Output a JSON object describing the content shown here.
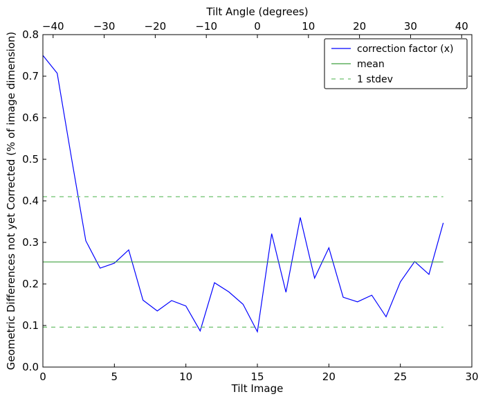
{
  "chart_data": {
    "type": "line",
    "title": "",
    "xlabel": "Tilt Image",
    "ylabel": "Geometric Differences not yet Corrected (% of image dimension)",
    "x2label": "Tilt Angle (degrees)",
    "xlim": [
      0,
      30
    ],
    "ylim": [
      0,
      0.8
    ],
    "x2lim": [
      -42,
      42
    ],
    "xticks": [
      0,
      5,
      10,
      15,
      20,
      25,
      30
    ],
    "xtick_labels": [
      "0",
      "5",
      "10",
      "15",
      "20",
      "25",
      "30"
    ],
    "yticks": [
      0,
      0.1,
      0.2,
      0.3,
      0.4,
      0.5,
      0.6,
      0.7,
      0.8
    ],
    "ytick_labels": [
      "0.0",
      "0.1",
      "0.2",
      "0.3",
      "0.4",
      "0.5",
      "0.6",
      "0.7",
      "0.8"
    ],
    "x2ticks": [
      -40,
      -30,
      -20,
      -10,
      0,
      10,
      20,
      30,
      40
    ],
    "x2tick_labels": [
      "−40",
      "−30",
      "−20",
      "−10",
      "0",
      "10",
      "20",
      "30",
      "40"
    ],
    "grid": false,
    "legend_position": "top-right",
    "series": [
      {
        "name": "correction factor (x)",
        "color": "#0000ff",
        "style": "solid",
        "x": [
          0,
          1,
          2,
          3,
          4,
          5,
          6,
          7,
          8,
          9,
          10,
          11,
          12,
          13,
          14,
          15,
          16,
          17,
          18,
          19,
          20,
          21,
          22,
          23,
          24,
          25,
          26,
          27,
          28
        ],
        "values": [
          0.75,
          0.707,
          0.503,
          0.304,
          0.238,
          0.25,
          0.282,
          0.161,
          0.135,
          0.16,
          0.147,
          0.087,
          0.203,
          0.181,
          0.151,
          0.085,
          0.321,
          0.18,
          0.36,
          0.214,
          0.287,
          0.168,
          0.157,
          0.173,
          0.121,
          0.205,
          0.254,
          0.223,
          0.347
        ]
      },
      {
        "name": "mean",
        "color": "#3fa03f",
        "style": "solid",
        "x": [
          0,
          28
        ],
        "values": [
          0.253,
          0.253
        ]
      },
      {
        "name": "1 stdev",
        "color": "#6cc06c",
        "style": "dashed",
        "x": [
          0,
          28
        ],
        "values": [
          0.41,
          0.41
        ]
      },
      {
        "name": "",
        "color": "#6cc06c",
        "style": "dashed",
        "x": [
          0,
          28
        ],
        "values": [
          0.096,
          0.096
        ]
      }
    ]
  }
}
